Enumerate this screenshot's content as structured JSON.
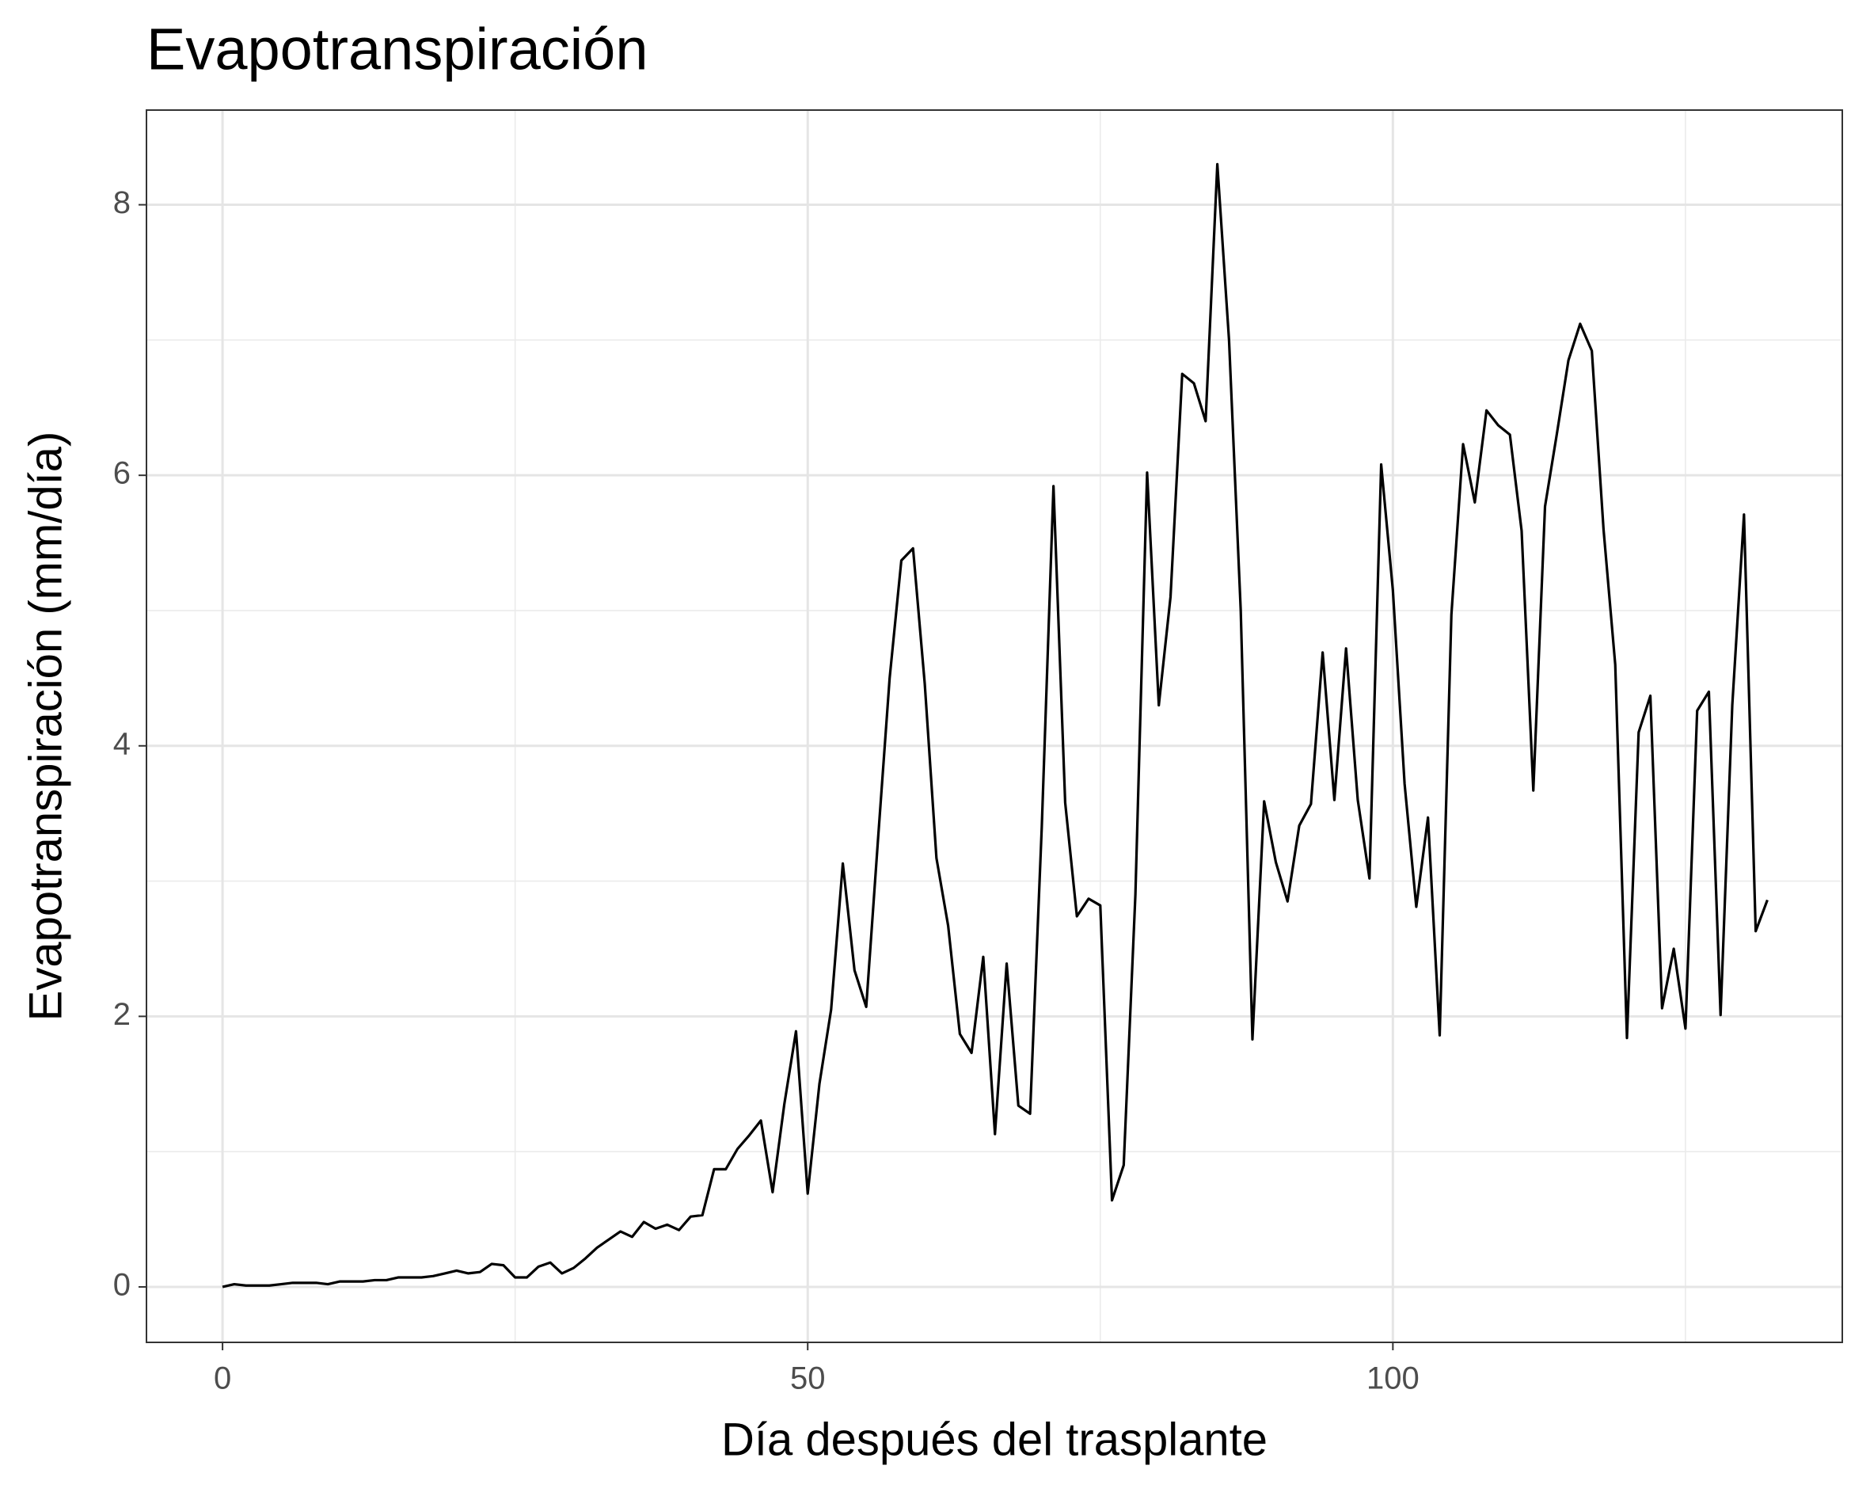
{
  "chart_data": {
    "type": "line",
    "title": "Evapotranspiración",
    "x_label": "Día después del trasplante",
    "y_label": "Evapotranspiración (mm/día)",
    "x": [
      0,
      1,
      2,
      3,
      4,
      5,
      6,
      7,
      8,
      9,
      10,
      11,
      12,
      13,
      14,
      15,
      16,
      17,
      18,
      19,
      20,
      21,
      22,
      23,
      24,
      25,
      26,
      27,
      28,
      29,
      30,
      31,
      32,
      33,
      34,
      35,
      36,
      37,
      38,
      39,
      40,
      41,
      42,
      43,
      44,
      45,
      46,
      47,
      48,
      49,
      50,
      51,
      52,
      53,
      54,
      55,
      56,
      57,
      58,
      59,
      60,
      61,
      62,
      63,
      64,
      65,
      66,
      67,
      68,
      69,
      70,
      71,
      72,
      73,
      74,
      75,
      76,
      77,
      78,
      79,
      80,
      81,
      82,
      83,
      84,
      85,
      86,
      87,
      88,
      89,
      90,
      91,
      92,
      93,
      94,
      95,
      96,
      97,
      98,
      99,
      100,
      101,
      102,
      103,
      104,
      105,
      106,
      107,
      108,
      109,
      110,
      111,
      112,
      113,
      114,
      115,
      116,
      117,
      118,
      119,
      120,
      121,
      122,
      123,
      124,
      125,
      126,
      127,
      128,
      129,
      130,
      131,
      132
    ],
    "series": [
      {
        "color": "#000000",
        "values": [
          0,
          0.02,
          0.01,
          0.01,
          0.01,
          0.02,
          0.03,
          0.03,
          0.03,
          0.02,
          0.04,
          0.04,
          0.04,
          0.05,
          0.05,
          0.07,
          0.07,
          0.07,
          0.08,
          0.1,
          0.12,
          0.1,
          0.11,
          0.17,
          0.16,
          0.07,
          0.07,
          0.15,
          0.18,
          0.1,
          0.14,
          0.21,
          0.29,
          0.35,
          0.41,
          0.37,
          0.48,
          0.43,
          0.46,
          0.42,
          0.52,
          0.53,
          0.87,
          0.87,
          1.02,
          1.12,
          1.23,
          0.7,
          1.35,
          1.89,
          0.69,
          1.5,
          2.05,
          3.13,
          2.34,
          2.07,
          3.3,
          4.5,
          5.37,
          5.46,
          4.46,
          3.17,
          2.67,
          1.87,
          1.73,
          2.44,
          1.13,
          2.39,
          1.34,
          1.28,
          3.4,
          5.92,
          3.58,
          2.74,
          2.87,
          2.82,
          0.64,
          0.9,
          2.9,
          6.02,
          4.3,
          5.1,
          6.75,
          6.68,
          6.4,
          8.3,
          7.0,
          5.0,
          1.83,
          3.59,
          3.14,
          2.85,
          3.41,
          3.57,
          4.69,
          3.6,
          4.72,
          3.6,
          3.02,
          6.08,
          5.15,
          3.72,
          2.81,
          3.47,
          1.86,
          4.97,
          6.23,
          5.8,
          6.48,
          6.37,
          6.3,
          5.59,
          3.67,
          5.77,
          6.3,
          6.85,
          7.12,
          6.92,
          5.6,
          4.6,
          1.84,
          4.1,
          4.37,
          2.06,
          2.5,
          1.91,
          4.26,
          4.4,
          2.01,
          4.3,
          5.71,
          2.63,
          2.86
        ]
      }
    ],
    "xlim": [
      -6.5,
      138.4
    ],
    "ylim": [
      -0.41,
      8.7
    ],
    "xticks": [
      0,
      50,
      100
    ],
    "yticks": [
      0,
      2,
      4,
      6,
      8
    ],
    "x_minor_ticks": [
      25,
      75,
      125
    ],
    "y_minor_ticks": [
      1,
      3,
      5,
      7
    ],
    "grid": true
  }
}
